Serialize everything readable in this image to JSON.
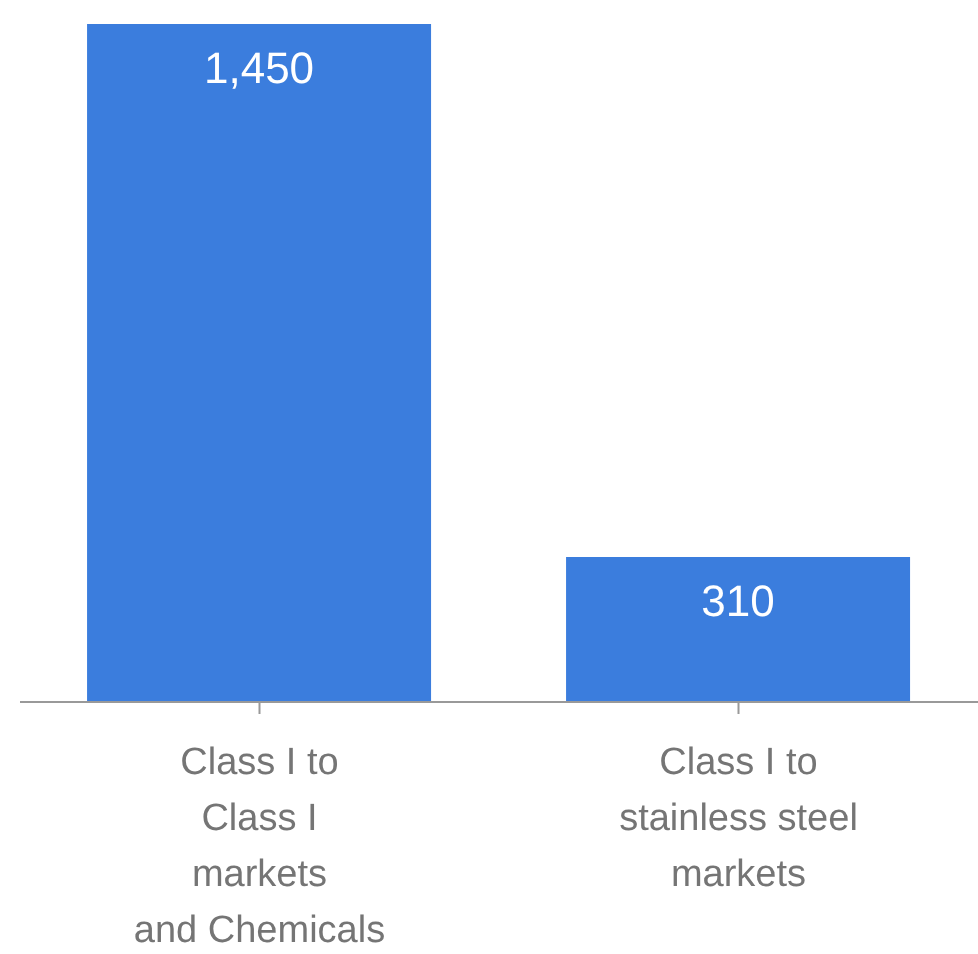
{
  "chart_data": {
    "type": "bar",
    "categories": [
      "Class I to\nClass I\nmarkets\nand Chemicals",
      "Class I to\nstainless steel\nmarkets"
    ],
    "values": [
      1450,
      310
    ],
    "value_labels": [
      "1,450",
      "310"
    ],
    "color": "#3b7ddd",
    "ylim": [
      0,
      1450
    ],
    "tick_labels": "x"
  }
}
